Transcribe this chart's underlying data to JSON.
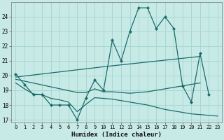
{
  "xlabel": "Humidex (Indice chaleur)",
  "bg_color": "#c8eae6",
  "grid_color": "#a8d8d4",
  "line_color": "#1a6b6b",
  "xlim": [
    -0.5,
    23.5
  ],
  "ylim": [
    16.8,
    25.0
  ],
  "yticks": [
    17,
    18,
    19,
    20,
    21,
    22,
    23,
    24
  ],
  "xticks": [
    0,
    1,
    2,
    3,
    4,
    5,
    6,
    7,
    8,
    9,
    10,
    11,
    12,
    13,
    14,
    15,
    16,
    17,
    18,
    19,
    20,
    21,
    22,
    23
  ],
  "series": [
    {
      "x": [
        0,
        1,
        2,
        3,
        4,
        5,
        6,
        7,
        8,
        9,
        10,
        11,
        12,
        13,
        14,
        15,
        16,
        17,
        18,
        19,
        20,
        21,
        22
      ],
      "y": [
        20.1,
        19.4,
        18.7,
        18.7,
        18.0,
        18.0,
        18.0,
        17.0,
        18.5,
        19.7,
        19.0,
        22.4,
        21.0,
        23.0,
        24.6,
        24.6,
        23.2,
        24.0,
        23.2,
        19.3,
        18.2,
        21.5,
        18.7
      ],
      "has_markers": true
    },
    {
      "x": [
        0,
        10,
        21
      ],
      "y": [
        19.9,
        20.6,
        21.3
      ],
      "has_markers": false
    },
    {
      "x": [
        0,
        7,
        8,
        9,
        10,
        11,
        12,
        13,
        14,
        15,
        16,
        17,
        18,
        19,
        20,
        21
      ],
      "y": [
        19.75,
        18.85,
        18.85,
        19.1,
        18.9,
        18.9,
        18.85,
        18.8,
        18.85,
        18.9,
        19.0,
        19.1,
        19.2,
        19.3,
        19.4,
        19.5
      ],
      "has_markers": false
    },
    {
      "x": [
        0,
        1,
        2,
        3,
        4,
        5,
        6,
        7,
        8,
        9,
        10,
        11,
        12,
        13,
        14,
        15,
        16,
        17,
        18,
        19,
        20,
        21,
        22,
        23
      ],
      "y": [
        19.5,
        19.1,
        18.75,
        18.7,
        18.45,
        18.35,
        18.2,
        17.55,
        18.05,
        18.5,
        18.45,
        18.4,
        18.3,
        18.2,
        18.1,
        18.0,
        17.85,
        17.7,
        17.6,
        17.5,
        17.4,
        17.35,
        17.3,
        17.25
      ],
      "has_markers": false
    }
  ]
}
